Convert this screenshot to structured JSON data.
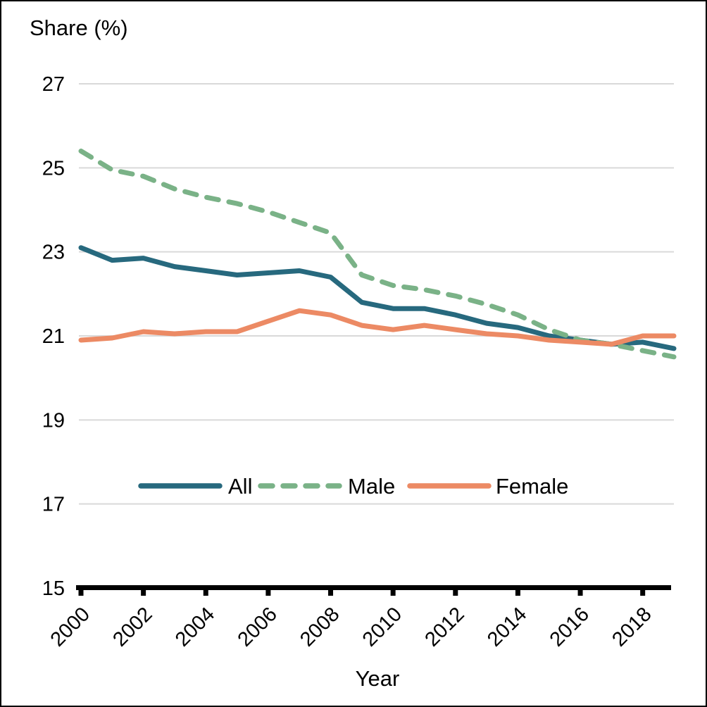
{
  "chart_data": {
    "type": "line",
    "title": "",
    "xlabel": "Year",
    "ylabel": "Share (%)",
    "x": [
      2000,
      2001,
      2002,
      2003,
      2004,
      2005,
      2006,
      2007,
      2008,
      2009,
      2010,
      2011,
      2012,
      2013,
      2014,
      2015,
      2016,
      2017,
      2018,
      2019
    ],
    "series": [
      {
        "name": "All",
        "color": "#27697e",
        "style": "solid",
        "values": [
          23.1,
          22.8,
          22.85,
          22.65,
          22.55,
          22.45,
          22.5,
          22.55,
          22.4,
          21.8,
          21.65,
          21.65,
          21.5,
          21.3,
          21.2,
          21.0,
          20.9,
          20.8,
          20.85,
          20.7
        ]
      },
      {
        "name": "Male",
        "color": "#7ab287",
        "style": "dashed",
        "values": [
          25.4,
          24.95,
          24.8,
          24.5,
          24.3,
          24.15,
          23.95,
          23.7,
          23.45,
          22.45,
          22.2,
          22.1,
          21.95,
          21.75,
          21.5,
          21.15,
          20.9,
          20.8,
          20.65,
          20.5
        ]
      },
      {
        "name": "Female",
        "color": "#ec8a64",
        "style": "solid",
        "values": [
          20.9,
          20.95,
          21.1,
          21.05,
          21.1,
          21.1,
          21.35,
          21.6,
          21.5,
          21.25,
          21.15,
          21.25,
          21.15,
          21.05,
          21.0,
          20.9,
          20.85,
          20.8,
          21.0,
          21.0
        ]
      }
    ],
    "ylim": [
      15,
      27
    ],
    "yticks": [
      27,
      25,
      23,
      21,
      19,
      17,
      15
    ],
    "xticks": [
      2000,
      2002,
      2004,
      2006,
      2008,
      2010,
      2012,
      2014,
      2016,
      2018
    ],
    "grid": true,
    "legend": [
      "All",
      "Male",
      "Female"
    ],
    "legend_position": "inside-lower-center"
  },
  "colors": {
    "background": "#ffffff",
    "gridline": "#d9d9d9",
    "axis": "#000000",
    "text": "#000000"
  }
}
